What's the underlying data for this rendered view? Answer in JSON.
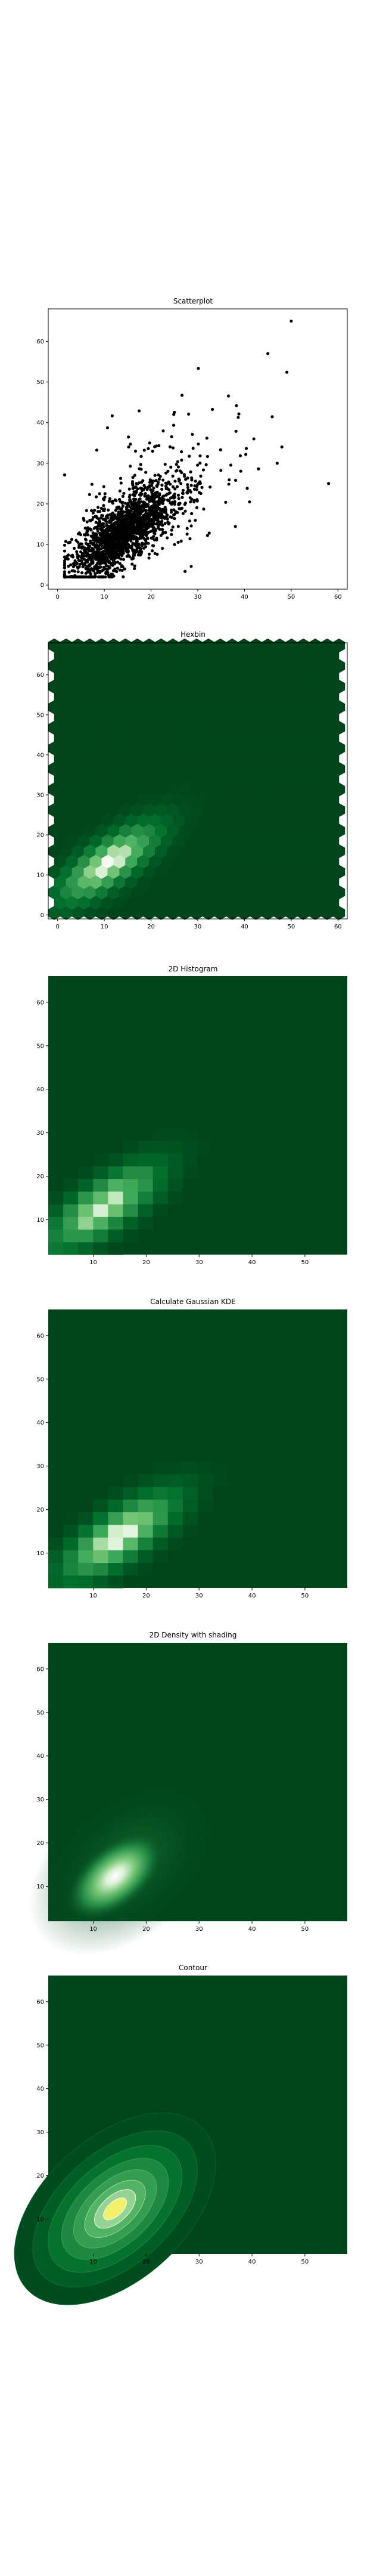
{
  "theme": {
    "point_color": "#000000",
    "colormap_dark": "#00441b",
    "colormap_mid": "#41ab5d",
    "colormap_light": "#f7fcf5",
    "contour_center_color": "#f2f06a",
    "frame_color": "#000000"
  },
  "chart_data": [
    {
      "type": "scatter",
      "title": "Scatterplot",
      "xlabel": "",
      "ylabel": "",
      "xlim": [
        -2,
        62
      ],
      "ylim": [
        -1,
        68
      ],
      "x_ticks": [
        0,
        10,
        20,
        30,
        40,
        50,
        60
      ],
      "y_ticks": [
        0,
        10,
        20,
        30,
        40,
        50,
        60
      ],
      "grid": false,
      "distribution": {
        "n_points": 2000,
        "x_center": 14,
        "y_center": 13,
        "x_min": 1.5,
        "y_min": 2,
        "notable_outliers": [
          [
            50,
            65
          ],
          [
            58,
            25
          ],
          [
            45,
            57
          ],
          [
            48,
            34
          ],
          [
            42,
            36
          ],
          [
            47,
            30
          ]
        ]
      }
    },
    {
      "type": "heatmap",
      "title": "Hexbin",
      "xlabel": "",
      "ylabel": "",
      "xlim": [
        -2,
        62
      ],
      "ylim": [
        -1,
        68
      ],
      "x_ticks": [
        0,
        10,
        20,
        30,
        40,
        50,
        60
      ],
      "y_ticks": [
        0,
        10,
        20,
        30,
        40,
        50,
        60
      ],
      "colormap": "greens",
      "peak_at": [
        11,
        13
      ]
    },
    {
      "type": "heatmap",
      "title": "2D Histogram",
      "xlabel": "",
      "ylabel": "",
      "xlim": [
        1.5,
        58
      ],
      "ylim": [
        2,
        66
      ],
      "x_ticks": [
        10,
        20,
        30,
        40,
        50
      ],
      "y_ticks": [
        10,
        20,
        30,
        40,
        50,
        60
      ],
      "colormap": "greens",
      "peak_at": [
        8,
        10
      ]
    },
    {
      "type": "heatmap",
      "title": "Calculate Gaussian KDE",
      "xlabel": "",
      "ylabel": "",
      "xlim": [
        1.5,
        58
      ],
      "ylim": [
        2,
        66
      ],
      "x_ticks": [
        10,
        20,
        30,
        40,
        50
      ],
      "y_ticks": [
        10,
        20,
        30,
        40,
        50,
        60
      ],
      "colormap": "greens",
      "peak_at": [
        13,
        12
      ]
    },
    {
      "type": "heatmap",
      "title": "2D Density with shading",
      "xlabel": "",
      "ylabel": "",
      "xlim": [
        1.5,
        58
      ],
      "ylim": [
        2,
        66
      ],
      "x_ticks": [
        10,
        20,
        30,
        40,
        50
      ],
      "y_ticks": [
        10,
        20,
        30,
        40,
        50,
        60
      ],
      "colormap": "greens",
      "peak_at": [
        13,
        11
      ]
    },
    {
      "type": "heatmap",
      "title": "Contour",
      "xlabel": "",
      "ylabel": "",
      "xlim": [
        1.5,
        58
      ],
      "ylim": [
        2,
        66
      ],
      "x_ticks": [
        10,
        20,
        30,
        40,
        50
      ],
      "y_ticks": [
        10,
        20,
        30,
        40,
        50,
        60
      ],
      "colormap": "greens",
      "peak_at": [
        13,
        11
      ]
    }
  ]
}
